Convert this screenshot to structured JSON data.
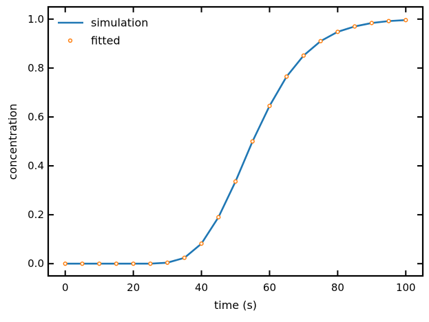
{
  "chart_data": {
    "type": "line",
    "xlabel": "time (s)",
    "ylabel": "concentration",
    "xlim": [
      -5,
      105
    ],
    "ylim": [
      -0.05,
      1.05
    ],
    "x_ticks": [
      0,
      20,
      40,
      60,
      80,
      100
    ],
    "x_tick_labels": [
      "0",
      "20",
      "40",
      "60",
      "80",
      "100"
    ],
    "y_ticks": [
      0.0,
      0.2,
      0.4,
      0.6,
      0.8,
      1.0
    ],
    "y_tick_labels": [
      "0.0",
      "0.2",
      "0.4",
      "0.6",
      "0.8",
      "1.0"
    ],
    "grid": false,
    "legend_position": "top-left",
    "series": [
      {
        "name": "simulation",
        "style": "line",
        "color": "#1f77b4",
        "x": [
          0,
          5,
          10,
          15,
          20,
          25,
          30,
          35,
          40,
          45,
          50,
          55,
          60,
          65,
          70,
          75,
          80,
          85,
          90,
          95,
          100
        ],
        "y": [
          0.0,
          0.0,
          0.0,
          0.0,
          0.0,
          0.0,
          0.004,
          0.024,
          0.082,
          0.19,
          0.336,
          0.5,
          0.645,
          0.765,
          0.851,
          0.91,
          0.948,
          0.97,
          0.984,
          0.992,
          0.996
        ]
      },
      {
        "name": "fitted",
        "style": "markers",
        "color": "#ff7f0e",
        "x": [
          0,
          5,
          10,
          15,
          20,
          25,
          30,
          35,
          40,
          45,
          50,
          55,
          60,
          65,
          70,
          75,
          80,
          85,
          90,
          95,
          100
        ],
        "y": [
          0.0,
          0.0,
          0.0,
          0.0,
          0.0,
          0.0,
          0.004,
          0.024,
          0.082,
          0.19,
          0.336,
          0.5,
          0.645,
          0.765,
          0.851,
          0.91,
          0.948,
          0.97,
          0.984,
          0.992,
          0.996
        ]
      }
    ]
  }
}
